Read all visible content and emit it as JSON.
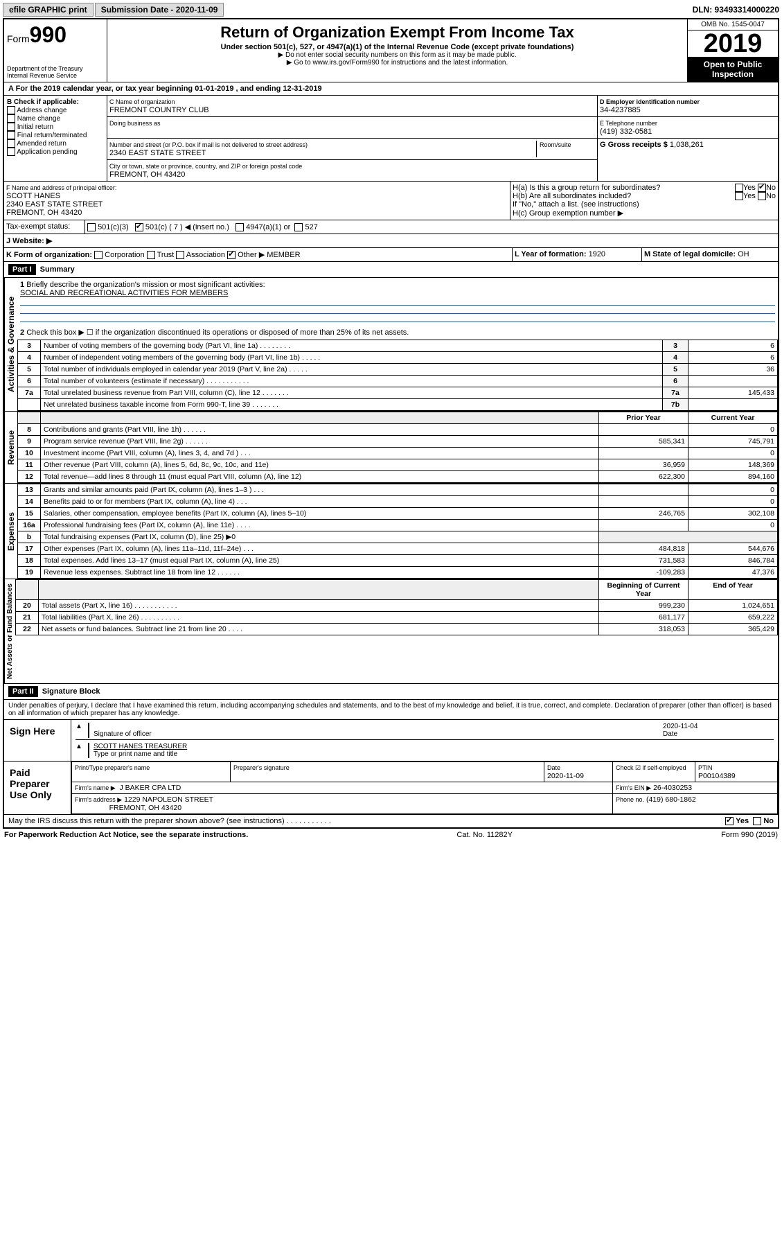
{
  "topbar": {
    "efile": "efile GRAPHIC print",
    "submission": "Submission Date - 2020-11-09",
    "dln": "DLN: 93493314000220"
  },
  "header": {
    "form_label": "Form",
    "form_no": "990",
    "title": "Return of Organization Exempt From Income Tax",
    "sub": "Under section 501(c), 527, or 4947(a)(1) of the Internal Revenue Code (except private foundations)",
    "note1": "▶ Do not enter social security numbers on this form as it may be made public.",
    "note2": "▶ Go to www.irs.gov/Form990 for instructions and the latest information.",
    "dept": "Department of the Treasury",
    "irs": "Internal Revenue Service",
    "omb": "OMB No. 1545-0047",
    "year": "2019",
    "open": "Open to Public Inspection"
  },
  "period": {
    "text": "A For the 2019 calendar year, or tax year beginning 01-01-2019 , and ending 12-31-2019"
  },
  "box_b": {
    "hdr": "B Check if applicable:",
    "items": [
      "Address change",
      "Name change",
      "Initial return",
      "Final return/terminated",
      "Amended return",
      "Application pending"
    ]
  },
  "box_c": {
    "label": "C Name of organization",
    "name": "FREMONT COUNTRY CLUB",
    "dba_label": "Doing business as",
    "dba": "",
    "addr_label": "Number and street (or P.O. box if mail is not delivered to street address)",
    "room": "Room/suite",
    "addr": "2340 EAST STATE STREET",
    "city_label": "City or town, state or province, country, and ZIP or foreign postal code",
    "city": "FREMONT, OH  43420"
  },
  "box_d": {
    "label": "D Employer identification number",
    "val": "34-4237885"
  },
  "box_e": {
    "label": "E Telephone number",
    "val": "(419) 332-0581"
  },
  "box_g": {
    "label": "G Gross receipts $",
    "val": "1,038,261"
  },
  "box_f": {
    "label": "F Name and address of principal officer:",
    "name": "SCOTT HANES",
    "addr": "2340 EAST STATE STREET",
    "city": "FREMONT, OH  43420"
  },
  "box_h": {
    "a": "H(a) Is this a group return for subordinates?",
    "b": "H(b) Are all subordinates included?",
    "attach": "If \"No,\" attach a list. (see instructions)",
    "c": "H(c) Group exemption number ▶",
    "yes": "Yes",
    "no": "No"
  },
  "box_i": {
    "label": "Tax-exempt status:",
    "c3": "501(c)(3)",
    "c": "501(c) ( 7 ) ◀ (insert no.)",
    "a1": "4947(a)(1) or",
    "s527": "527"
  },
  "box_j": {
    "label": "J   Website: ▶"
  },
  "box_k": {
    "label": "K Form of organization:",
    "corp": "Corporation",
    "trust": "Trust",
    "assoc": "Association",
    "other": "Other ▶",
    "val": "MEMBER"
  },
  "box_l": {
    "label": "L Year of formation:",
    "val": "1920"
  },
  "box_m": {
    "label": "M State of legal domicile:",
    "val": "OH"
  },
  "part1": {
    "hdr": "Part I",
    "title": "Summary",
    "l1": "Briefly describe the organization's mission or most significant activities:",
    "l1v": "SOCIAL AND RECREATIONAL ACTIVITIES FOR MEMBERS",
    "l2": "Check this box ▶ ☐ if the organization discontinued its operations or disposed of more than 25% of its net assets.",
    "rows_ag": [
      {
        "n": "3",
        "d": "Number of voting members of the governing body (Part VI, line 1a) . . . . . . . .",
        "b": "3",
        "v": "6"
      },
      {
        "n": "4",
        "d": "Number of independent voting members of the governing body (Part VI, line 1b) . . . . .",
        "b": "4",
        "v": "6"
      },
      {
        "n": "5",
        "d": "Total number of individuals employed in calendar year 2019 (Part V, line 2a) . . . . .",
        "b": "5",
        "v": "36"
      },
      {
        "n": "6",
        "d": "Total number of volunteers (estimate if necessary) . . . . . . . . . . .",
        "b": "6",
        "v": ""
      },
      {
        "n": "7a",
        "d": "Total unrelated business revenue from Part VIII, column (C), line 12 . . . . . . .",
        "b": "7a",
        "v": "145,433"
      },
      {
        "n": "",
        "d": "Net unrelated business taxable income from Form 990-T, line 39 . . . . . . .",
        "b": "7b",
        "v": ""
      }
    ],
    "col_prior": "Prior Year",
    "col_current": "Current Year",
    "rows_rev": [
      {
        "n": "8",
        "d": "Contributions and grants (Part VIII, line 1h) . . . . . .",
        "p": "",
        "c": "0"
      },
      {
        "n": "9",
        "d": "Program service revenue (Part VIII, line 2g) . . . . . .",
        "p": "585,341",
        "c": "745,791"
      },
      {
        "n": "10",
        "d": "Investment income (Part VIII, column (A), lines 3, 4, and 7d ) . . .",
        "p": "",
        "c": "0"
      },
      {
        "n": "11",
        "d": "Other revenue (Part VIII, column (A), lines 5, 6d, 8c, 9c, 10c, and 11e)",
        "p": "36,959",
        "c": "148,369"
      },
      {
        "n": "12",
        "d": "Total revenue—add lines 8 through 11 (must equal Part VIII, column (A), line 12)",
        "p": "622,300",
        "c": "894,160"
      }
    ],
    "rows_exp": [
      {
        "n": "13",
        "d": "Grants and similar amounts paid (Part IX, column (A), lines 1–3 ) . . .",
        "p": "",
        "c": "0"
      },
      {
        "n": "14",
        "d": "Benefits paid to or for members (Part IX, column (A), line 4) . . .",
        "p": "",
        "c": "0"
      },
      {
        "n": "15",
        "d": "Salaries, other compensation, employee benefits (Part IX, column (A), lines 5–10)",
        "p": "246,765",
        "c": "302,108"
      },
      {
        "n": "16a",
        "d": "Professional fundraising fees (Part IX, column (A), line 11e) . . . .",
        "p": "",
        "c": "0"
      },
      {
        "n": "b",
        "d": "Total fundraising expenses (Part IX, column (D), line 25) ▶0",
        "p": "—",
        "c": "—"
      },
      {
        "n": "17",
        "d": "Other expenses (Part IX, column (A), lines 11a–11d, 11f–24e) . . .",
        "p": "484,818",
        "c": "544,676"
      },
      {
        "n": "18",
        "d": "Total expenses. Add lines 13–17 (must equal Part IX, column (A), line 25)",
        "p": "731,583",
        "c": "846,784"
      },
      {
        "n": "19",
        "d": "Revenue less expenses. Subtract line 18 from line 12 . . . . . .",
        "p": "-109,283",
        "c": "47,376"
      }
    ],
    "col_beg": "Beginning of Current Year",
    "col_end": "End of Year",
    "rows_na": [
      {
        "n": "20",
        "d": "Total assets (Part X, line 16) . . . . . . . . . . .",
        "p": "999,230",
        "c": "1,024,651"
      },
      {
        "n": "21",
        "d": "Total liabilities (Part X, line 26) . . . . . . . . . .",
        "p": "681,177",
        "c": "659,222"
      },
      {
        "n": "22",
        "d": "Net assets or fund balances. Subtract line 21 from line 20 . . . .",
        "p": "318,053",
        "c": "365,429"
      }
    ],
    "side_ag": "Activities & Governance",
    "side_rev": "Revenue",
    "side_exp": "Expenses",
    "side_na": "Net Assets or Fund Balances"
  },
  "part2": {
    "hdr": "Part II",
    "title": "Signature Block",
    "perjury": "Under penalties of perjury, I declare that I have examined this return, including accompanying schedules and statements, and to the best of my knowledge and belief, it is true, correct, and complete. Declaration of preparer (other than officer) is based on all information of which preparer has any knowledge.",
    "sign": "Sign Here",
    "sig_of": "Signature of officer",
    "date_lbl": "Date",
    "date": "2020-11-04",
    "name": "SCOTT HANES TREASURER",
    "name_lbl": "Type or print name and title",
    "paid": "Paid Preparer Use Only",
    "prep_name_lbl": "Print/Type preparer's name",
    "prep_sig_lbl": "Preparer's signature",
    "prep_date_lbl": "Date",
    "prep_date": "2020-11-09",
    "check_lbl": "Check ☑ if self-employed",
    "ptin_lbl": "PTIN",
    "ptin": "P00104389",
    "firm_name_lbl": "Firm's name ▶",
    "firm_name": "J BAKER CPA LTD",
    "firm_ein_lbl": "Firm's EIN ▶",
    "firm_ein": "26-4030253",
    "firm_addr_lbl": "Firm's address ▶",
    "firm_addr": "1229 NAPOLEON STREET",
    "firm_city": "FREMONT, OH  43420",
    "phone_lbl": "Phone no.",
    "phone": "(419) 680-1862",
    "discuss": "May the IRS discuss this return with the preparer shown above? (see instructions) . . . . . . . . . . ."
  },
  "footer": {
    "pra": "For Paperwork Reduction Act Notice, see the separate instructions.",
    "cat": "Cat. No. 11282Y",
    "form": "Form 990 (2019)"
  }
}
